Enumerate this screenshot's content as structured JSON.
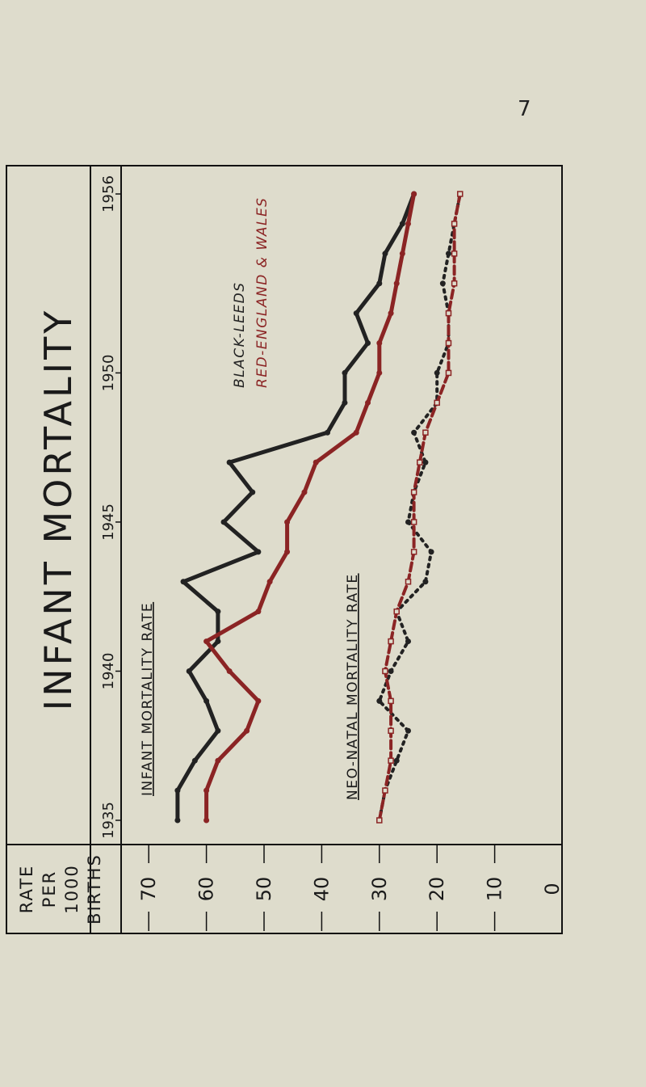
{
  "page": {
    "number": "7"
  },
  "chart_data": {
    "type": "line",
    "orientation": "rotated-90-ccw",
    "title": "INFANT MORTALITY",
    "ylabel": "RATE PER 1000 BIRTHS",
    "ylim": [
      0,
      75
    ],
    "y_ticks": [
      "70",
      "60",
      "50",
      "40",
      "30",
      "20",
      "10",
      "0"
    ],
    "y_tick_values": [
      70,
      60,
      50,
      40,
      30,
      20,
      10,
      0
    ],
    "x_ticks": [
      "1935",
      "1940",
      "1945",
      "1950",
      "1956"
    ],
    "x_tick_values": [
      1935,
      1940,
      1945,
      1950,
      1956
    ],
    "xlim": [
      1935,
      1956
    ],
    "legend": [
      "BLACK-LEEDS",
      "RED-ENGLAND & WALES"
    ],
    "annotations": [
      "INFANT MORTALITY RATE",
      "NEO-NATAL MORTALITY RATE"
    ],
    "colors": {
      "leeds": "#222222",
      "england": "#8b2424",
      "frame": "#111111"
    },
    "x": [
      1935,
      1936,
      1937,
      1938,
      1939,
      1940,
      1941,
      1942,
      1943,
      1944,
      1945,
      1946,
      1947,
      1948,
      1949,
      1950,
      1951,
      1952,
      1953,
      1954,
      1955,
      1956
    ],
    "series": [
      {
        "name": "BLACK-LEEDS",
        "group": "INFANT MORTALITY RATE",
        "style": "solid",
        "color": "#222222",
        "values": [
          65,
          65,
          62,
          58,
          60,
          63,
          58,
          58,
          64,
          51,
          57,
          52,
          56,
          39,
          36,
          36,
          32,
          34,
          30,
          29,
          26,
          24
        ]
      },
      {
        "name": "RED-ENGLAND & WALES",
        "group": "INFANT MORTALITY RATE",
        "style": "solid",
        "color": "#8b2424",
        "values": [
          60,
          60,
          58,
          53,
          51,
          56,
          60,
          51,
          49,
          46,
          46,
          43,
          41,
          34,
          32,
          30,
          30,
          28,
          27,
          26,
          25,
          24
        ]
      },
      {
        "name": "BLACK-LEEDS",
        "group": "NEO-NATAL MORTALITY RATE",
        "style": "dotted",
        "color": "#222222",
        "values": [
          30,
          29,
          27,
          25,
          30,
          28,
          25,
          27,
          22,
          21,
          25,
          24,
          22,
          24,
          20,
          20,
          18,
          18,
          19,
          18,
          17,
          16
        ]
      },
      {
        "name": "RED-ENGLAND & WALES",
        "group": "NEO-NATAL MORTALITY RATE",
        "style": "dashed",
        "color": "#8b2424",
        "values": [
          30,
          29,
          28,
          28,
          28,
          29,
          28,
          27,
          25,
          24,
          24,
          24,
          23,
          22,
          20,
          18,
          18,
          18,
          17,
          17,
          17,
          16
        ]
      }
    ]
  }
}
